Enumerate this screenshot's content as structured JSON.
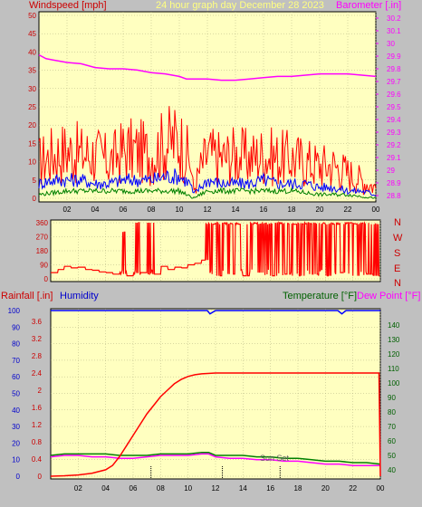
{
  "header": {
    "left_label": "Windspeed [mph]",
    "center_label": "24 hour graph day   December 28 2023",
    "right_label": "Barometer [.in]"
  },
  "colors": {
    "background": "#c0c0c0",
    "plot_bg": "#ffffc0",
    "grid": "#b0b080",
    "wind_max": "#ff0000",
    "wind_avg": "#0000ff",
    "wind_min": "#008000",
    "barometer": "#ff00ff",
    "direction": "#ff0000",
    "rainfall": "#ff0000",
    "humidity": "#0000ff",
    "temperature": "#008000",
    "dewpoint": "#ff00ff"
  },
  "compass": [
    "N",
    "W",
    "S",
    "E",
    "N"
  ],
  "bottom_header": {
    "rain_label": "Rainfall [.in]",
    "humidity_label": "Humidity",
    "temp_label": "Temperature [°F]",
    "dew_label": "Dew Point [°F]"
  },
  "annotation": "Sun Set",
  "chart_data": [
    {
      "type": "line",
      "x_ticks": [
        "02",
        "04",
        "06",
        "08",
        "10",
        "12",
        "14",
        "16",
        "18",
        "20",
        "22",
        "00"
      ],
      "y_left_ticks": [
        "0",
        "5",
        "10",
        "15",
        "20",
        "25",
        "30",
        "35",
        "40",
        "45",
        "50"
      ],
      "y_left_range": [
        0,
        50
      ],
      "y_right_ticks": [
        "28.8",
        "28.9",
        "29",
        "29.1",
        "29.2",
        "29.3",
        "29.4",
        "29.5",
        "29.6",
        "29.7",
        "29.8",
        "29.9",
        "30",
        "30.1",
        "30.2"
      ],
      "y_right_range": [
        28.75,
        30.25
      ],
      "x_range": [
        0,
        24
      ],
      "series": [
        {
          "name": "Barometer",
          "axis": "right",
          "x": [
            0,
            0.5,
            1,
            2,
            3,
            4,
            5,
            6,
            7,
            8,
            9,
            10,
            10.5,
            11,
            12,
            13,
            14,
            15,
            16,
            17,
            18,
            19,
            20,
            21,
            22,
            23,
            24
          ],
          "y": [
            29.91,
            29.88,
            29.87,
            29.85,
            29.84,
            29.81,
            29.8,
            29.8,
            29.79,
            29.77,
            29.76,
            29.74,
            29.72,
            29.72,
            29.72,
            29.71,
            29.71,
            29.72,
            29.73,
            29.74,
            29.74,
            29.75,
            29.76,
            29.76,
            29.76,
            29.75,
            29.74
          ]
        },
        {
          "name": "Wind max",
          "axis": "left",
          "x": [
            0,
            1,
            2,
            3,
            4,
            5,
            6,
            7,
            8,
            9,
            10,
            10.8,
            11,
            11.5,
            12,
            13,
            14,
            15,
            16,
            17,
            18,
            19,
            20,
            21,
            22,
            23,
            24
          ],
          "y": [
            10,
            12,
            13,
            12,
            12,
            10,
            13,
            13,
            12,
            15,
            16,
            10,
            2,
            8,
            12,
            11,
            12,
            11,
            12,
            11,
            11,
            10,
            9,
            9,
            7,
            5,
            3
          ]
        },
        {
          "name": "Wind avg",
          "axis": "left",
          "x": [
            0,
            1,
            2,
            3,
            4,
            5,
            6,
            7,
            8,
            9,
            10,
            10.8,
            11,
            11.5,
            12,
            13,
            14,
            15,
            16,
            17,
            18,
            19,
            20,
            21,
            22,
            23,
            24
          ],
          "y": [
            4,
            5,
            5,
            5,
            4,
            4,
            5,
            5,
            5,
            6,
            6,
            4,
            1,
            3,
            5,
            4,
            4,
            4,
            5,
            4,
            4,
            4,
            3,
            3,
            2,
            2,
            1
          ]
        },
        {
          "name": "Wind min",
          "axis": "left",
          "x": [
            0,
            2,
            4,
            6,
            8,
            10,
            11,
            12,
            14,
            16,
            18,
            20,
            22,
            24
          ],
          "y": [
            1,
            2,
            2,
            2,
            2,
            2,
            0,
            2,
            2,
            2,
            2,
            1,
            1,
            0
          ]
        }
      ]
    },
    {
      "type": "line",
      "y_ticks": [
        "0",
        "90",
        "180",
        "270",
        "360"
      ],
      "y_range": [
        0,
        360
      ],
      "x_range": [
        0,
        24
      ],
      "series": [
        {
          "name": "Wind direction",
          "x": [
            0,
            0.5,
            1,
            1.5,
            2,
            2.5,
            3,
            3.5,
            4,
            4.5,
            5,
            5.5,
            6,
            6.5,
            7,
            7.5,
            8,
            8.5,
            9,
            9.5,
            10,
            10.5,
            11,
            11.5,
            12,
            12.5,
            13,
            13.5,
            14,
            14.5,
            15,
            15.5,
            16,
            16.5,
            17,
            17.5,
            18,
            18.5,
            19,
            19.5,
            20,
            20.5,
            21,
            21.5,
            22,
            22.5,
            23,
            23.5,
            24
          ],
          "y": [
            40,
            60,
            80,
            70,
            75,
            60,
            55,
            45,
            40,
            30,
            300,
            20,
            360,
            40,
            360,
            30,
            80,
            60,
            75,
            70,
            90,
            100,
            120,
            350,
            20,
            360,
            30,
            350,
            20,
            360,
            40,
            350,
            20,
            360,
            30,
            350,
            20,
            360,
            30,
            360,
            20,
            350,
            40,
            360,
            20,
            350,
            30,
            20,
            40
          ]
        }
      ]
    },
    {
      "type": "line",
      "x_ticks": [
        "02",
        "04",
        "06",
        "08",
        "10",
        "12",
        "14",
        "16",
        "18",
        "20",
        "22",
        "00"
      ],
      "y_left_ticks": [
        "0",
        "10",
        "20",
        "30",
        "40",
        "50",
        "60",
        "70",
        "80",
        "90",
        "100"
      ],
      "y_left_range": [
        0,
        100
      ],
      "y_rain_ticks": [
        "0",
        "0.4",
        "0.8",
        "1.2",
        "1.6",
        "2",
        "2.4",
        "2.8",
        "3.2",
        "3.6"
      ],
      "y_rain_range": [
        0,
        4
      ],
      "y_right_ticks": [
        "40",
        "50",
        "60",
        "70",
        "80",
        "90",
        "100",
        "110",
        "120",
        "130",
        "140"
      ],
      "y_right_range": [
        30,
        150
      ],
      "x_range": [
        0,
        24
      ],
      "series": [
        {
          "name": "Rainfall",
          "axis": "rain",
          "x": [
            0,
            1,
            2,
            3,
            4,
            4.5,
            5,
            5.5,
            6,
            6.5,
            7,
            7.5,
            8,
            8.5,
            9,
            9.5,
            10,
            10.5,
            11,
            12,
            14,
            16,
            18,
            20,
            22,
            23.9,
            24
          ],
          "y": [
            0,
            0.01,
            0.03,
            0.07,
            0.15,
            0.25,
            0.45,
            0.7,
            0.95,
            1.2,
            1.45,
            1.65,
            1.85,
            2.0,
            2.15,
            2.25,
            2.32,
            2.36,
            2.38,
            2.4,
            2.4,
            2.4,
            2.4,
            2.4,
            2.4,
            2.4,
            0
          ]
        },
        {
          "name": "Humidity",
          "axis": "left",
          "x": [
            0,
            2,
            4,
            6,
            8,
            10,
            11.4,
            11.6,
            12,
            14,
            16,
            18,
            20,
            20.9,
            21.2,
            21.5,
            22,
            24
          ],
          "y": [
            100,
            100,
            100,
            100,
            100,
            100,
            100,
            98,
            100,
            100,
            100,
            100,
            100,
            100,
            98,
            100,
            100,
            100
          ]
        },
        {
          "name": "Temperature",
          "axis": "right",
          "x": [
            0,
            1,
            2,
            3,
            4,
            5,
            6,
            7,
            8,
            9,
            10,
            11,
            11.5,
            12,
            13,
            14,
            15,
            16,
            17,
            18,
            19,
            20,
            21,
            22,
            23,
            24
          ],
          "y": [
            50,
            51,
            51,
            51,
            51,
            50,
            50,
            50,
            51,
            51,
            51,
            52,
            52,
            50,
            50,
            50,
            49,
            49,
            48,
            48,
            47,
            46,
            46,
            45,
            45,
            44
          ]
        },
        {
          "name": "Dew Point",
          "axis": "right",
          "x": [
            0,
            1,
            2,
            3,
            4,
            5,
            6,
            7,
            8,
            9,
            10,
            11,
            11.5,
            12,
            13,
            14,
            15,
            16,
            17,
            18,
            19,
            20,
            21,
            22,
            23,
            24
          ],
          "y": [
            49,
            50,
            50,
            49,
            49,
            48,
            48,
            49,
            50,
            50,
            50,
            51,
            51,
            49,
            48,
            48,
            47,
            47,
            46,
            46,
            45,
            44,
            44,
            43,
            43,
            43
          ]
        }
      ]
    }
  ]
}
